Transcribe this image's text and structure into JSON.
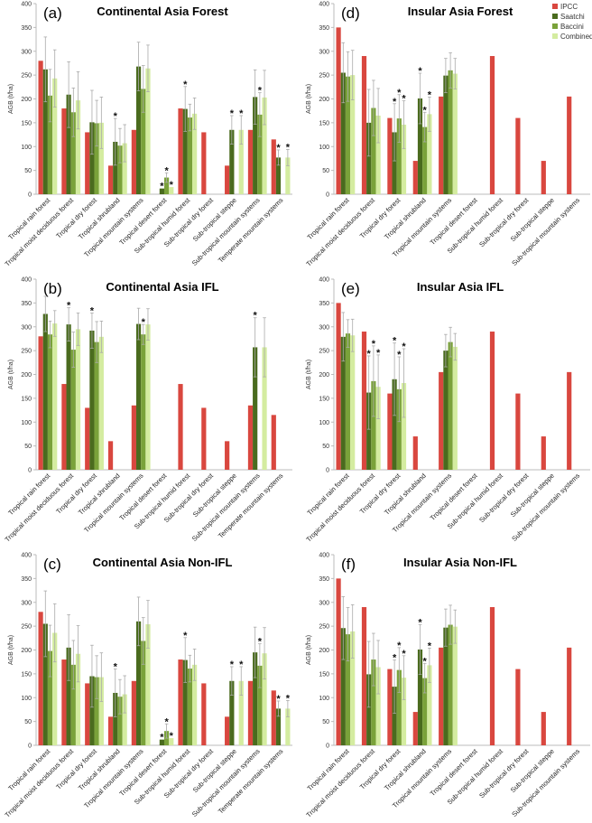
{
  "colors": {
    "IPCC": "#d9473f",
    "Saatchi": "#4a6b1e",
    "Baccini": "#7aa23a",
    "Combined": "#d4eca0",
    "error_bar": "#aaaaaa",
    "axis": "#bbbbbb"
  },
  "legend": {
    "placement": "top-right",
    "entries": [
      "IPCC",
      "Saatchi",
      "Baccini",
      "Combined"
    ]
  },
  "chart_data": [
    {
      "type": "bar",
      "letter": "(a)",
      "title": "Continental Asia Forest",
      "ylabel": "AGB (t/ha)",
      "ylim": [
        0,
        400
      ],
      "yticks": [
        0,
        50,
        100,
        150,
        200,
        250,
        300,
        350,
        400
      ],
      "categories": [
        "Tropical rain forest",
        "Tropical moist deciduous forest",
        "Tropical dry forest",
        "Tropical shrubland",
        "Tropical mountain systems",
        "Tropical desert forest",
        "Sub-tropical humid forest",
        "Sub-tropical dry forest",
        "Sub-tropical steppe",
        "Sub-tropical mountain systems",
        "Temperate mountain systems"
      ],
      "series": [
        {
          "name": "IPCC",
          "values": [
            280,
            180,
            130,
            60,
            135,
            null,
            180,
            130,
            60,
            135,
            115
          ]
        },
        {
          "name": "Saatchi",
          "values": [
            262,
            209,
            151,
            110,
            268,
            12,
            179,
            null,
            135,
            204,
            77
          ],
          "errors": [
            68,
            69,
            67,
            49,
            51,
            0,
            47,
            null,
            30,
            57,
            16
          ],
          "significant": [
            false,
            false,
            false,
            true,
            false,
            true,
            true,
            false,
            true,
            false,
            true
          ]
        },
        {
          "name": "Baccini",
          "values": [
            207,
            172,
            149,
            102,
            221,
            35,
            161,
            null,
            null,
            167,
            null
          ],
          "errors": [
            55,
            51,
            48,
            36,
            49,
            10,
            28,
            null,
            null,
            46,
            null
          ],
          "significant": [
            false,
            false,
            false,
            false,
            false,
            true,
            false,
            false,
            false,
            true,
            false
          ]
        },
        {
          "name": "Combined",
          "values": [
            243,
            197,
            150,
            107,
            264,
            15,
            169,
            null,
            135,
            203,
            77
          ],
          "errors": [
            60,
            60,
            54,
            39,
            49,
            0,
            33,
            null,
            30,
            57,
            17
          ],
          "significant": [
            false,
            false,
            false,
            false,
            false,
            true,
            false,
            false,
            true,
            false,
            true
          ]
        }
      ]
    },
    {
      "type": "bar",
      "letter": "(b)",
      "title": "Continental Asia IFL",
      "ylabel": "AGB (t/ha)",
      "ylim": [
        0,
        400
      ],
      "yticks": [
        0,
        50,
        100,
        150,
        200,
        250,
        300,
        350,
        400
      ],
      "categories": [
        "Tropical rain forest",
        "Tropical moist deciduous forest",
        "Tropical dry forest",
        "Tropical shrubland",
        "Tropical mountain systems",
        "Tropical desert forest",
        "Sub-tropical humid forest",
        "Sub-tropical dry forest",
        "Sub-tropical steppe",
        "Sub-tropical mountain systems",
        "Temperate mountain systems"
      ],
      "series": [
        {
          "name": "IPCC",
          "values": [
            280,
            180,
            130,
            60,
            135,
            null,
            180,
            130,
            60,
            135,
            115
          ]
        },
        {
          "name": "Saatchi",
          "values": [
            327,
            305,
            292,
            null,
            306,
            null,
            null,
            null,
            null,
            257,
            null
          ],
          "errors": [
            37,
            35,
            37,
            null,
            33,
            null,
            null,
            null,
            null,
            62,
            null
          ],
          "significant": [
            false,
            true,
            true,
            false,
            false,
            false,
            false,
            false,
            false,
            true,
            false
          ]
        },
        {
          "name": "Baccini",
          "values": [
            284,
            252,
            268,
            null,
            284,
            null,
            null,
            null,
            null,
            null,
            null
          ],
          "errors": [
            28,
            37,
            43,
            null,
            21,
            null,
            null,
            null,
            null,
            null,
            null
          ],
          "significant": [
            false,
            false,
            false,
            false,
            true,
            false,
            false,
            false,
            false,
            false,
            false
          ]
        },
        {
          "name": "Combined",
          "values": [
            307,
            295,
            279,
            null,
            305,
            null,
            null,
            null,
            null,
            257,
            null
          ],
          "errors": [
            27,
            34,
            33,
            null,
            33,
            null,
            null,
            null,
            null,
            62,
            null
          ],
          "significant": [
            false,
            false,
            false,
            false,
            false,
            false,
            false,
            false,
            false,
            false,
            false
          ]
        }
      ]
    },
    {
      "type": "bar",
      "letter": "(c)",
      "title": "Continental Asia Non-IFL",
      "ylabel": "AGB (t/ha)",
      "ylim": [
        0,
        400
      ],
      "yticks": [
        0,
        50,
        100,
        150,
        200,
        250,
        300,
        350,
        400
      ],
      "categories": [
        "Tropical rain forest",
        "Tropical moist deciduous forest",
        "Tropical dry forest",
        "Tropical shrubland",
        "Tropical mountain systems",
        "Tropical desert forest",
        "Sub-tropical humid forest",
        "Sub-tropical dry forest",
        "Sub-tropical steppe",
        "Sub-tropical mountain systems",
        "Temperate mountain systems"
      ],
      "series": [
        {
          "name": "IPCC",
          "values": [
            280,
            180,
            130,
            60,
            135,
            null,
            180,
            130,
            60,
            135,
            115
          ]
        },
        {
          "name": "Saatchi",
          "values": [
            255,
            205,
            145,
            110,
            260,
            12,
            179,
            null,
            135,
            195,
            77
          ],
          "errors": [
            69,
            69,
            65,
            50,
            51,
            0,
            47,
            null,
            30,
            53,
            16
          ],
          "significant": [
            false,
            false,
            false,
            true,
            false,
            true,
            true,
            false,
            true,
            false,
            true
          ]
        },
        {
          "name": "Baccini",
          "values": [
            198,
            169,
            143,
            102,
            219,
            30,
            161,
            null,
            null,
            167,
            null
          ],
          "errors": [
            54,
            51,
            45,
            36,
            49,
            15,
            28,
            null,
            null,
            46,
            null
          ],
          "significant": [
            false,
            false,
            false,
            false,
            false,
            true,
            false,
            false,
            false,
            true,
            false
          ]
        },
        {
          "name": "Combined",
          "values": [
            236,
            192,
            143,
            107,
            254,
            15,
            169,
            null,
            135,
            193,
            77
          ],
          "errors": [
            61,
            59,
            51,
            39,
            50,
            0,
            33,
            null,
            30,
            54,
            17
          ],
          "significant": [
            false,
            false,
            false,
            false,
            false,
            true,
            false,
            false,
            true,
            false,
            true
          ]
        }
      ]
    },
    {
      "type": "bar",
      "letter": "(d)",
      "title": "Insular Asia Forest",
      "ylabel": "AGB (t/ha)",
      "ylim": [
        0,
        400
      ],
      "yticks": [
        0,
        50,
        100,
        150,
        200,
        250,
        300,
        350,
        400
      ],
      "categories": [
        "Tropical rain forest",
        "Tropical moist deciduous forest",
        "Tropical dry forest",
        "Tropical shrubland",
        "Tropical mountain systems",
        "Tropical desert forest",
        "Sub-tropical humid forest",
        "Sub-tropical dry forest",
        "Sub-tropical steppe",
        "Sub-tropical mountain systems"
      ],
      "series": [
        {
          "name": "IPCC",
          "values": [
            350,
            290,
            160,
            70,
            205,
            null,
            290,
            160,
            70,
            205
          ]
        },
        {
          "name": "Saatchi",
          "values": [
            255,
            150,
            130,
            201,
            249,
            null,
            null,
            null,
            null,
            null
          ],
          "errors": [
            63,
            70,
            60,
            53,
            36,
            null,
            null,
            null,
            null,
            null
          ],
          "significant": [
            false,
            false,
            true,
            true,
            false,
            false,
            false,
            false,
            false,
            false
          ]
        },
        {
          "name": "Baccini",
          "values": [
            247,
            181,
            159,
            141,
            260,
            null,
            null,
            null,
            null,
            null
          ],
          "errors": [
            52,
            58,
            50,
            31,
            37,
            null,
            null,
            null,
            null,
            null
          ],
          "significant": [
            false,
            false,
            true,
            true,
            false,
            false,
            false,
            false,
            false,
            false
          ]
        },
        {
          "name": "Combined",
          "values": [
            250,
            165,
            146,
            168,
            253,
            null,
            null,
            null,
            null,
            null
          ],
          "errors": [
            52,
            57,
            50,
            36,
            32,
            null,
            null,
            null,
            null,
            null
          ],
          "significant": [
            false,
            false,
            true,
            true,
            false,
            false,
            false,
            false,
            false,
            false
          ]
        }
      ]
    },
    {
      "type": "bar",
      "letter": "(e)",
      "title": "Insular Asia IFL",
      "ylabel": "AGB (t/ha)",
      "ylim": [
        0,
        400
      ],
      "yticks": [
        0,
        50,
        100,
        150,
        200,
        250,
        300,
        350,
        400
      ],
      "categories": [
        "Tropical rain forest",
        "Tropical moist deciduous forest",
        "Tropical dry forest",
        "Tropical shrubland",
        "Tropical mountain systems",
        "Tropical desert forest",
        "Sub-tropical humid forest",
        "Sub-tropical dry forest",
        "Sub-tropical steppe",
        "Sub-tropical mountain systems"
      ],
      "series": [
        {
          "name": "IPCC",
          "values": [
            350,
            290,
            160,
            70,
            205,
            null,
            290,
            160,
            70,
            205
          ]
        },
        {
          "name": "Saatchi",
          "values": [
            279,
            162,
            190,
            null,
            250,
            null,
            null,
            null,
            null,
            null
          ],
          "errors": [
            51,
            77,
            76,
            null,
            34,
            null,
            null,
            null,
            null,
            null
          ],
          "significant": [
            false,
            true,
            true,
            false,
            false,
            false,
            false,
            false,
            false,
            false
          ]
        },
        {
          "name": "Baccini",
          "values": [
            286,
            186,
            169,
            null,
            268,
            null,
            null,
            null,
            null,
            null
          ],
          "errors": [
            29,
            74,
            68,
            null,
            31,
            null,
            null,
            null,
            null,
            null
          ],
          "significant": [
            false,
            true,
            true,
            false,
            false,
            false,
            false,
            false,
            false,
            false
          ]
        },
        {
          "name": "Combined",
          "values": [
            282,
            174,
            182,
            null,
            258,
            null,
            null,
            null,
            null,
            null
          ],
          "errors": [
            34,
            67,
            72,
            null,
            28,
            null,
            null,
            null,
            null,
            null
          ],
          "significant": [
            false,
            true,
            true,
            false,
            false,
            false,
            false,
            false,
            false,
            false
          ]
        }
      ]
    },
    {
      "type": "bar",
      "letter": "(f)",
      "title": "Insular Asia Non-IFL",
      "ylabel": "AGB (t/ha)",
      "ylim": [
        0,
        400
      ],
      "yticks": [
        0,
        50,
        100,
        150,
        200,
        250,
        300,
        350,
        400
      ],
      "categories": [
        "Tropical rain forest",
        "Tropical moist deciduous forest",
        "Tropical dry forest",
        "Tropical shrubland",
        "Tropical mountain systems",
        "Tropical desert forest",
        "Sub-tropical humid forest",
        "Sub-tropical dry forest",
        "Sub-tropical steppe",
        "Sub-tropical mountain systems"
      ],
      "series": [
        {
          "name": "IPCC",
          "values": [
            350,
            290,
            160,
            70,
            205,
            null,
            290,
            160,
            70,
            205
          ]
        },
        {
          "name": "Saatchi",
          "values": [
            246,
            149,
            123,
            201,
            247,
            null,
            null,
            null,
            null,
            null
          ],
          "errors": [
            66,
            69,
            56,
            52,
            39,
            null,
            null,
            null,
            null,
            null
          ],
          "significant": [
            false,
            false,
            true,
            true,
            false,
            false,
            false,
            false,
            false,
            false
          ]
        },
        {
          "name": "Baccini",
          "values": [
            233,
            180,
            158,
            141,
            253,
            null,
            null,
            null,
            null,
            null
          ],
          "errors": [
            56,
            55,
            47,
            31,
            41,
            null,
            null,
            null,
            null,
            null
          ],
          "significant": [
            false,
            false,
            true,
            true,
            false,
            false,
            false,
            false,
            false,
            false
          ]
        },
        {
          "name": "Combined",
          "values": [
            239,
            164,
            142,
            168,
            249,
            null,
            null,
            null,
            null,
            null
          ],
          "errors": [
            56,
            56,
            46,
            36,
            35,
            null,
            null,
            null,
            null,
            null
          ],
          "significant": [
            false,
            false,
            true,
            true,
            false,
            false,
            false,
            false,
            false,
            false
          ]
        }
      ]
    }
  ]
}
